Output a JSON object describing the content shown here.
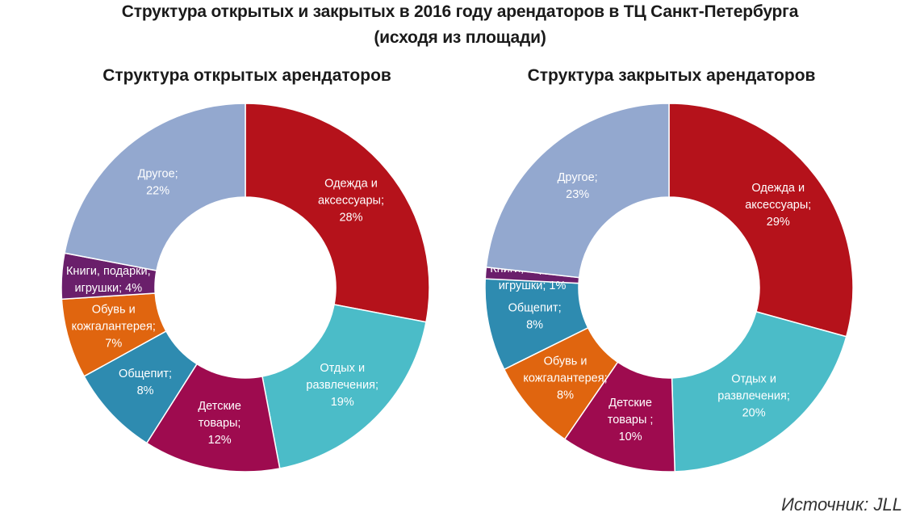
{
  "title_line1": "Структура открытых и закрытых в 2016 году арендаторов в ТЦ Санкт-Петербурга",
  "title_line2": "(исходя из площади)",
  "source": "Источник: JLL",
  "chart_data": [
    {
      "type": "pie",
      "title": "Структура открытых арендаторов",
      "slices": [
        {
          "label": [
            "Одежда и",
            "аксессуары;",
            "28%"
          ],
          "value": 28,
          "color": "#b5121b"
        },
        {
          "label": [
            "Отдых и",
            "развлечения;",
            "19%"
          ],
          "value": 19,
          "color": "#4bbcc8"
        },
        {
          "label": [
            "Детские",
            "товары;",
            "12%"
          ],
          "value": 12,
          "color": "#9e0b4f"
        },
        {
          "label": [
            "Общепит;",
            "8%"
          ],
          "value": 8,
          "color": "#2e8bb0"
        },
        {
          "label": [
            "Обувь и",
            "кожгалантерея;",
            "7%"
          ],
          "value": 7,
          "color": "#e0650f"
        },
        {
          "label": [
            "Книги, подарки,",
            "игрушки; 4%"
          ],
          "value": 4,
          "color": "#6a1f6b"
        },
        {
          "label": [
            "Другое;",
            "22%"
          ],
          "value": 22,
          "color": "#93a8cf"
        }
      ]
    },
    {
      "type": "pie",
      "title": "Структура закрытых арендаторов",
      "slices": [
        {
          "label": [
            "Одежда и",
            "аксессуары;",
            "29%"
          ],
          "value": 29,
          "color": "#b5121b"
        },
        {
          "label": [
            "Отдых и",
            "развлечения;",
            "20%"
          ],
          "value": 20,
          "color": "#4bbcc8"
        },
        {
          "label": [
            "Детские",
            "товары ;",
            "10%"
          ],
          "value": 10,
          "color": "#9e0b4f"
        },
        {
          "label": [
            "Обувь и",
            "кожгалантерея;",
            "8%"
          ],
          "value": 8,
          "color": "#e0650f"
        },
        {
          "label": [
            "Общепит;",
            "8%"
          ],
          "value": 8,
          "color": "#2e8bb0"
        },
        {
          "label": [
            "Книги, подарки,",
            "игрушки; 1%"
          ],
          "value": 1,
          "color": "#6a1f6b"
        },
        {
          "label": [
            "Другое;",
            "23%"
          ],
          "value": 23,
          "color": "#93a8cf"
        }
      ]
    }
  ]
}
